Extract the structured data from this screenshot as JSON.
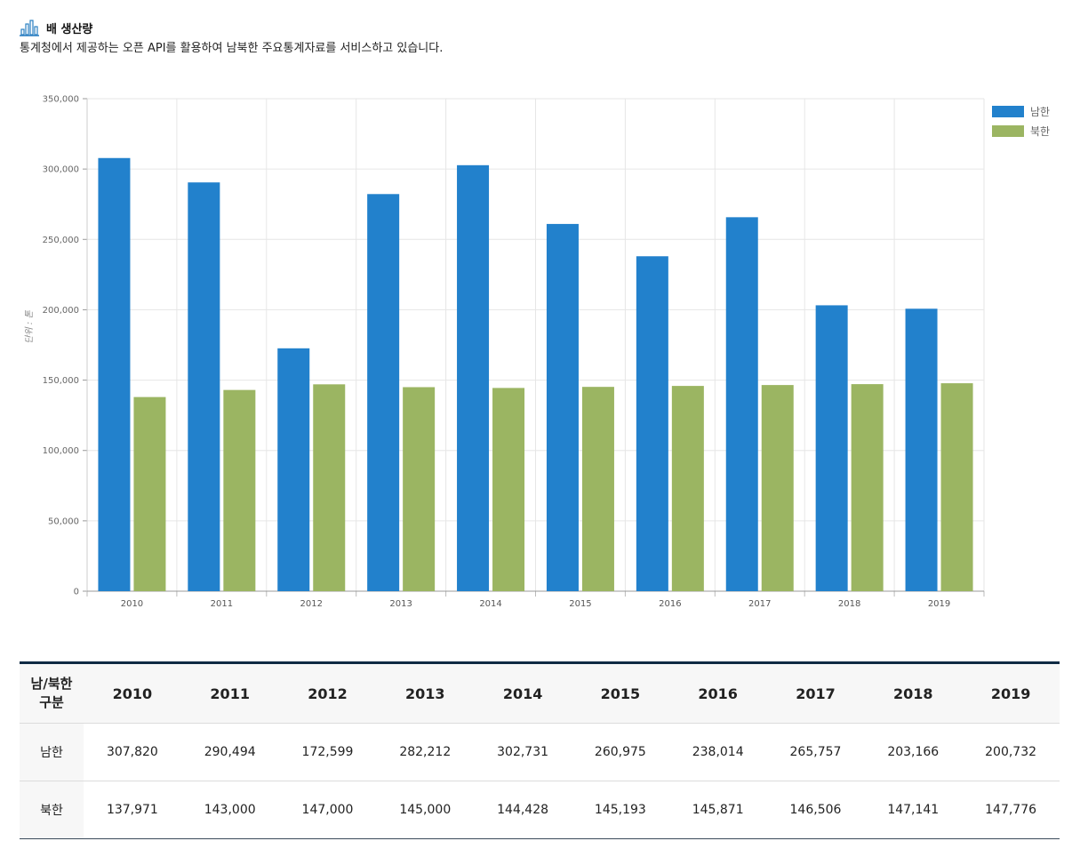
{
  "header": {
    "title": "배 생산량",
    "description": "통계청에서 제공하는 오픈 API를 활용하여 남북한 주요통계자료를 서비스하고 있습니다."
  },
  "colors": {
    "south": "#2281cc",
    "north": "#9bb562",
    "icon": "#2a7fc2",
    "table_border": "#0f2a44"
  },
  "chart_data": {
    "type": "bar",
    "title": "",
    "xlabel": "",
    "ylabel": "단위 : 톤",
    "categories": [
      "2010",
      "2011",
      "2012",
      "2013",
      "2014",
      "2015",
      "2016",
      "2017",
      "2018",
      "2019"
    ],
    "series": [
      {
        "name": "남한",
        "color": "#2281cc",
        "values": [
          307820,
          290494,
          172599,
          282212,
          302731,
          260975,
          238014,
          265757,
          203166,
          200732
        ]
      },
      {
        "name": "북한",
        "color": "#9bb562",
        "values": [
          137971,
          143000,
          147000,
          145000,
          144428,
          145193,
          145871,
          146506,
          147141,
          147776
        ]
      }
    ],
    "ylim": [
      0,
      350000
    ],
    "yticks": [
      "0",
      "50,000",
      "100,000",
      "150,000",
      "200,000",
      "250,000",
      "300,000",
      "350,000"
    ],
    "grid": true,
    "legend": "top-right"
  },
  "table": {
    "header_label_line1": "남/북한",
    "header_label_line2": "구분",
    "years": [
      "2010",
      "2011",
      "2012",
      "2013",
      "2014",
      "2015",
      "2016",
      "2017",
      "2018",
      "2019"
    ],
    "rows": [
      {
        "label": "남한",
        "values": [
          "307,820",
          "290,494",
          "172,599",
          "282,212",
          "302,731",
          "260,975",
          "238,014",
          "265,757",
          "203,166",
          "200,732"
        ]
      },
      {
        "label": "북한",
        "values": [
          "137,971",
          "143,000",
          "147,000",
          "145,000",
          "144,428",
          "145,193",
          "145,871",
          "146,506",
          "147,141",
          "147,776"
        ]
      }
    ]
  }
}
